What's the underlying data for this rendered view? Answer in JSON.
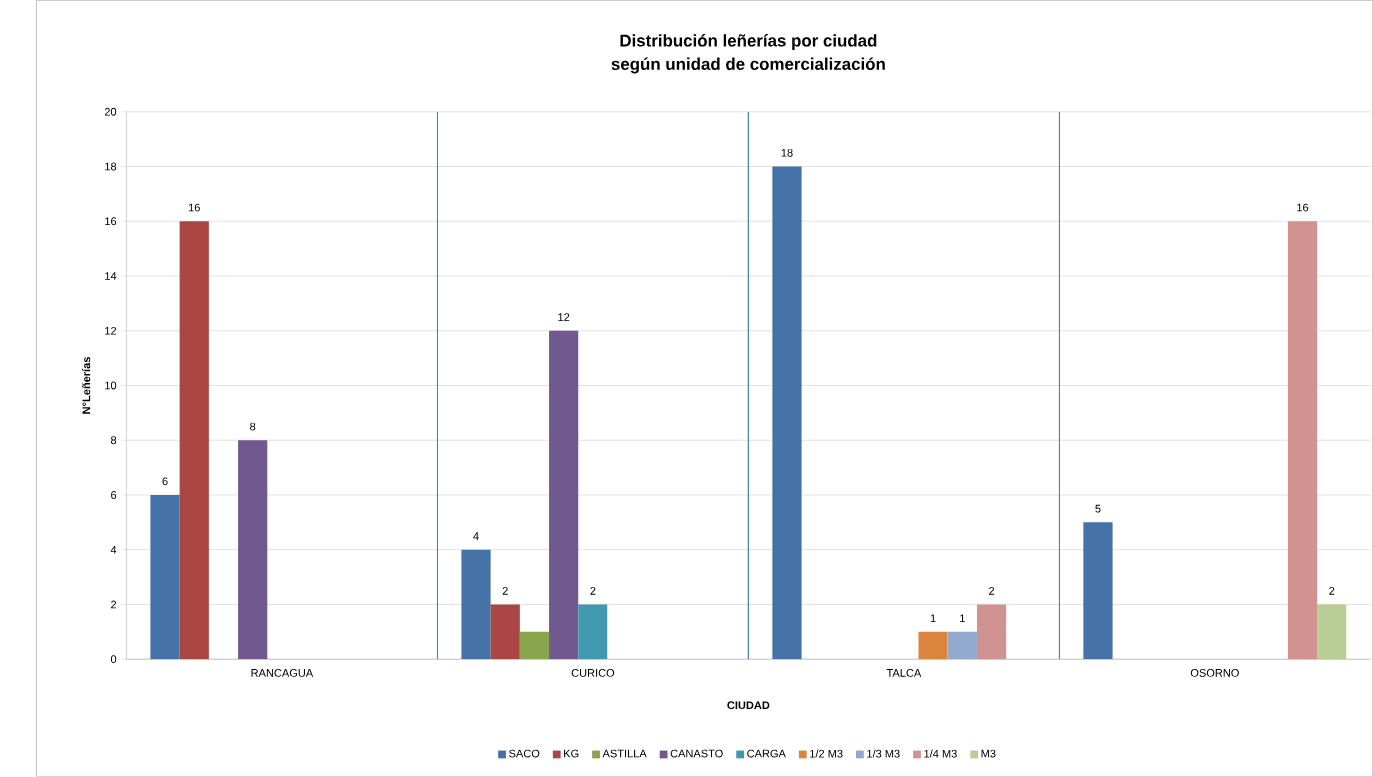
{
  "chart_data": {
    "type": "bar",
    "title": "Distribución leñerías por ciudad",
    "subtitle": "según unidad de comercialización",
    "xlabel": "CIUDAD",
    "ylabel": "N°Leñerías",
    "categories": [
      "RANCAGUA",
      "CURICO",
      "TALCA",
      "OSORNO"
    ],
    "series": [
      {
        "name": "SACO",
        "color": "#4572a7",
        "values": [
          6,
          4,
          18,
          5
        ],
        "value_labels": [
          "6",
          "4",
          "18",
          "5"
        ]
      },
      {
        "name": "KG",
        "color": "#aa4643",
        "values": [
          16,
          2,
          null,
          null
        ],
        "value_labels": [
          "16",
          "2",
          null,
          null
        ]
      },
      {
        "name": "ASTILLA",
        "color": "#89a54e",
        "values": [
          null,
          1,
          null,
          null
        ],
        "value_labels": [
          null,
          null,
          null,
          null
        ]
      },
      {
        "name": "CANASTO",
        "color": "#71588f",
        "values": [
          8,
          12,
          null,
          null
        ],
        "value_labels": [
          "8",
          "12",
          null,
          null
        ]
      },
      {
        "name": "CARGA",
        "color": "#4198af",
        "values": [
          null,
          2,
          null,
          null
        ],
        "value_labels": [
          null,
          "2",
          null,
          null
        ]
      },
      {
        "name": "1/2 M3",
        "color": "#db843d",
        "values": [
          null,
          null,
          1,
          null
        ],
        "value_labels": [
          null,
          null,
          "1",
          null
        ]
      },
      {
        "name": "1/3 M3",
        "color": "#93a9cf",
        "values": [
          null,
          null,
          1,
          null
        ],
        "value_labels": [
          null,
          null,
          "1",
          null
        ]
      },
      {
        "name": "1/4 M3",
        "color": "#d19392",
        "values": [
          null,
          null,
          2,
          16
        ],
        "value_labels": [
          null,
          null,
          "2",
          "16"
        ]
      },
      {
        "name": "M3",
        "color": "#b9cd96",
        "values": [
          null,
          null,
          null,
          2
        ],
        "value_labels": [
          null,
          null,
          null,
          "2"
        ]
      }
    ],
    "ylim": [
      0,
      20
    ],
    "yticks": [
      0,
      2,
      4,
      6,
      8,
      10,
      12,
      14,
      16,
      18,
      20
    ],
    "grid": "y",
    "legend": "bottom"
  }
}
